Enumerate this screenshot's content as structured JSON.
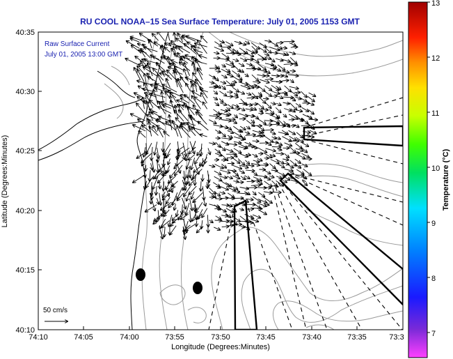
{
  "title": "RU COOL  NOAA–15  Sea Surface Temperature:  July 01, 2005 1153 GMT",
  "inset_label_1": "Raw Surface Current",
  "inset_label_2": "July 01, 2005 13:00 GMT",
  "scale_label": "50 cm/s",
  "x_axis_label": "Longitude (Degrees:Minutes)",
  "y_axis_label": "Latitude (Degrees:Minutes)",
  "colorbar_label": "Temperature (°C)",
  "x_ticks": [
    "74:10",
    "74:05",
    "74:00",
    "73:55",
    "73:50",
    "73:45",
    "73:40",
    "73:35",
    "73:3"
  ],
  "y_ticks": [
    "40:35",
    "40:30",
    "40:25",
    "40:20",
    "40:15",
    "40:10"
  ],
  "cb_ticks": [
    "13",
    "12",
    "11",
    "10",
    "9",
    "8",
    "7"
  ],
  "colors": {
    "title_blue": "#1a22b0",
    "inset_blue": "#1a22b0",
    "contour_gray": "#9a9a9a",
    "line_black": "#000000"
  }
}
